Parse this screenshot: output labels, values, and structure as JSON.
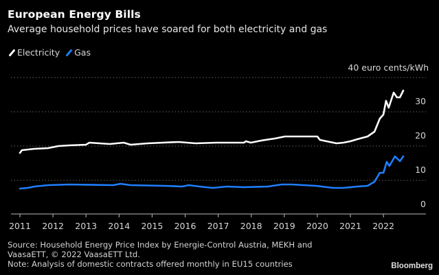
{
  "chart_data": {
    "type": "line",
    "title": "European Energy Bills",
    "subtitle": "Average household prices have soared for both electricity and gas",
    "unit_label": "40 euro cents/kWh",
    "xlabel": "",
    "ylabel": "euro cents/kWh",
    "xlim": [
      2011,
      2023.3
    ],
    "ylim": [
      0,
      40
    ],
    "x_ticks": [
      2011,
      2012,
      2013,
      2014,
      2015,
      2016,
      2017,
      2018,
      2019,
      2020,
      2021,
      2022
    ],
    "x_tick_labels": [
      "2011",
      "2012",
      "2013",
      "2014",
      "2015",
      "2016",
      "2017",
      "2018",
      "2019",
      "2020",
      "2021",
      "2022"
    ],
    "y_ticks": [
      0,
      10,
      20,
      30,
      40
    ],
    "y_tick_labels": [
      "0",
      "10",
      "20",
      "30",
      "40 euro cents/kWh"
    ],
    "grid": true,
    "legend_position": "top-left",
    "series": [
      {
        "name": "Electricity",
        "color": "#ffffff",
        "points": [
          [
            2011.0,
            18.0
          ],
          [
            2011.06,
            18.8
          ],
          [
            2011.44,
            19.2
          ],
          [
            2011.85,
            19.4
          ],
          [
            2012.16,
            20.0
          ],
          [
            2012.48,
            20.2
          ],
          [
            2013.0,
            20.4
          ],
          [
            2013.1,
            21.0
          ],
          [
            2013.72,
            20.6
          ],
          [
            2014.14,
            21.0
          ],
          [
            2014.35,
            20.4
          ],
          [
            2014.87,
            20.8
          ],
          [
            2015.8,
            21.2
          ],
          [
            2016.32,
            20.8
          ],
          [
            2016.95,
            21.0
          ],
          [
            2017.78,
            21.0
          ],
          [
            2017.84,
            21.4
          ],
          [
            2017.99,
            21.0
          ],
          [
            2018.3,
            21.6
          ],
          [
            2018.71,
            22.2
          ],
          [
            2019.02,
            22.8
          ],
          [
            2019.54,
            22.8
          ],
          [
            2020.0,
            22.8
          ],
          [
            2020.08,
            21.8
          ],
          [
            2020.38,
            21.2
          ],
          [
            2020.58,
            20.8
          ],
          [
            2020.79,
            21.0
          ],
          [
            2021.0,
            21.4
          ],
          [
            2021.21,
            22.0
          ],
          [
            2021.52,
            22.8
          ],
          [
            2021.73,
            24.2
          ],
          [
            2021.89,
            28.0
          ],
          [
            2022.0,
            29.2
          ],
          [
            2022.08,
            33.2
          ],
          [
            2022.16,
            31.2
          ],
          [
            2022.31,
            35.6
          ],
          [
            2022.41,
            34.2
          ],
          [
            2022.5,
            34.2
          ],
          [
            2022.6,
            36.2
          ]
        ]
      },
      {
        "name": "Gas",
        "color": "#1f7fff",
        "points": [
          [
            2011.0,
            7.6
          ],
          [
            2011.23,
            7.8
          ],
          [
            2011.44,
            8.2
          ],
          [
            2011.85,
            8.6
          ],
          [
            2012.48,
            8.8
          ],
          [
            2013.83,
            8.6
          ],
          [
            2014.04,
            9.0
          ],
          [
            2014.35,
            8.6
          ],
          [
            2015.39,
            8.4
          ],
          [
            2015.91,
            8.2
          ],
          [
            2016.11,
            8.6
          ],
          [
            2016.43,
            8.2
          ],
          [
            2016.84,
            7.8
          ],
          [
            2017.26,
            8.2
          ],
          [
            2017.78,
            8.0
          ],
          [
            2018.5,
            8.2
          ],
          [
            2018.92,
            8.8
          ],
          [
            2019.23,
            8.8
          ],
          [
            2019.96,
            8.4
          ],
          [
            2020.48,
            7.8
          ],
          [
            2020.79,
            7.8
          ],
          [
            2021.21,
            8.2
          ],
          [
            2021.52,
            8.4
          ],
          [
            2021.73,
            9.6
          ],
          [
            2021.89,
            12.2
          ],
          [
            2022.0,
            12.2
          ],
          [
            2022.1,
            15.4
          ],
          [
            2022.18,
            14.2
          ],
          [
            2022.35,
            17.0
          ],
          [
            2022.5,
            15.6
          ],
          [
            2022.6,
            17.0
          ]
        ]
      }
    ]
  },
  "legend": [
    {
      "label": "Electricity",
      "color": "#ffffff"
    },
    {
      "label": "Gas",
      "color": "#1f7fff"
    }
  ],
  "footer": {
    "source": "Source: Household Energy Price Index by Energie-Control Austria, MEKH and VaasaETT, © 2022 VaasaETT Ltd.",
    "note": "Note: Analysis of domestic contracts offered monthly in EU15 countries"
  },
  "brand": "Bloomberg"
}
